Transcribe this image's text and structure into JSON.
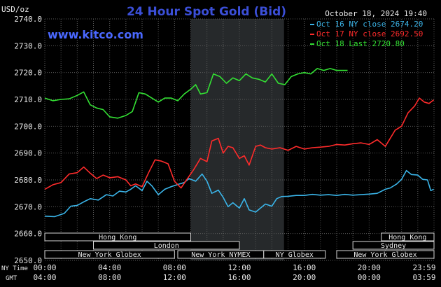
{
  "chart_data": {
    "type": "line",
    "title": "24 Hour Spot Gold (Bid)",
    "ylabel": "USD/oz",
    "date_label": "October 18, 2024 19:40",
    "brand": "www.kitco.com",
    "ylim": [
      2650.0,
      2740.0
    ],
    "yticks": [
      "2740.0",
      "2730.0",
      "2720.0",
      "2710.0",
      "2700.0",
      "2690.0",
      "2680.0",
      "2670.0",
      "2660.0",
      "2650.0"
    ],
    "x_unit": "hours",
    "xlim": [
      0,
      24
    ],
    "xticks": [
      0,
      4,
      8,
      12,
      16,
      20,
      23.98
    ],
    "xtick_labels_ny": [
      "00:00",
      "04:00",
      "08:00",
      "12:00",
      "16:00",
      "20:00",
      "23:59"
    ],
    "xtick_labels_gmt": [
      "04:00",
      "08:00",
      "12:00",
      "16:00",
      "20:00",
      "00:00",
      "03:59"
    ],
    "x_axis_labels": {
      "ny": "NY Time",
      "gmt": "GMT"
    },
    "shaded_region": [
      9,
      14.75
    ],
    "grid": true,
    "legend_position": "top-right",
    "series": [
      {
        "name": "Oct 16 NY close 2674.20",
        "color": "#3ab4e8",
        "x": [
          0,
          0.6,
          1.2,
          1.6,
          2.0,
          2.4,
          2.8,
          3.3,
          3.8,
          4.2,
          4.6,
          5.0,
          5.3,
          5.6,
          6.0,
          6.3,
          6.6,
          7.0,
          7.4,
          7.8,
          8.3,
          8.6,
          8.9,
          9.3,
          9.7,
          10.0,
          10.3,
          10.7,
          11.0,
          11.3,
          11.6,
          12.0,
          12.3,
          12.6,
          13.0,
          13.3,
          13.6,
          14.0,
          14.3,
          14.6,
          15.0,
          15.5,
          16.0,
          16.5,
          17.0,
          17.5,
          18.0,
          18.5,
          19.0,
          19.5,
          20.0,
          20.5,
          21.0,
          21.3,
          21.7,
          22.0,
          22.3,
          22.6,
          23.0,
          23.3,
          23.6,
          23.8,
          23.98
        ],
        "values": [
          2666.5,
          2666.3,
          2667.5,
          2670.2,
          2670.5,
          2671.8,
          2673.0,
          2672.5,
          2674.5,
          2674.0,
          2675.8,
          2675.5,
          2676.5,
          2677.8,
          2676.0,
          2679.5,
          2677.8,
          2674.5,
          2676.5,
          2677.5,
          2678.5,
          2679.0,
          2680.5,
          2679.5,
          2682.2,
          2679.5,
          2675.0,
          2676.2,
          2673.5,
          2670.0,
          2671.5,
          2669.5,
          2673.0,
          2668.8,
          2668.0,
          2669.5,
          2671.0,
          2670.2,
          2673.0,
          2673.8,
          2673.9,
          2674.2,
          2674.2,
          2674.6,
          2674.3,
          2674.5,
          2674.2,
          2674.6,
          2674.3,
          2674.5,
          2674.7,
          2675.0,
          2676.5,
          2677.0,
          2678.5,
          2680.2,
          2683.5,
          2682.0,
          2681.8,
          2680.2,
          2680.0,
          2676.0,
          2676.5
        ]
      },
      {
        "name": "Oct 17 NY close 2692.50",
        "color": "#ff2b2b",
        "x": [
          0,
          0.5,
          1.0,
          1.5,
          2.0,
          2.4,
          2.8,
          3.2,
          3.6,
          4.0,
          4.5,
          5.0,
          5.3,
          5.6,
          6.0,
          6.4,
          6.8,
          7.2,
          7.6,
          8.0,
          8.4,
          8.8,
          9.2,
          9.6,
          10.0,
          10.3,
          10.7,
          11.0,
          11.3,
          11.6,
          12.0,
          12.3,
          12.6,
          13.0,
          13.3,
          13.6,
          14.0,
          14.5,
          15.0,
          15.5,
          16.0,
          16.5,
          17.0,
          17.5,
          18.0,
          18.5,
          19.0,
          19.5,
          20.0,
          20.5,
          21.0,
          21.3,
          21.6,
          22.0,
          22.4,
          22.8,
          23.1,
          23.4,
          23.7,
          23.98
        ],
        "values": [
          2676.5,
          2678.2,
          2679.0,
          2682.2,
          2682.7,
          2684.8,
          2682.5,
          2680.5,
          2681.8,
          2680.8,
          2681.2,
          2680.0,
          2677.8,
          2678.5,
          2677.5,
          2682.7,
          2687.5,
          2687.0,
          2686.0,
          2679.5,
          2677.0,
          2680.5,
          2684.0,
          2688.0,
          2686.8,
          2694.5,
          2695.5,
          2690.0,
          2692.5,
          2692.0,
          2688.0,
          2689.0,
          2685.5,
          2692.5,
          2693.0,
          2692.0,
          2691.5,
          2692.0,
          2691.0,
          2692.5,
          2691.5,
          2692.0,
          2692.2,
          2692.5,
          2693.2,
          2693.0,
          2693.5,
          2693.8,
          2693.2,
          2695.0,
          2692.5,
          2695.5,
          2698.5,
          2700.0,
          2705.0,
          2707.5,
          2710.5,
          2709.0,
          2708.5,
          2709.8
        ]
      },
      {
        "name": "Oct 18 Last 2720.80",
        "color": "#33e033",
        "x": [
          0,
          0.5,
          1.0,
          1.5,
          2.0,
          2.4,
          2.8,
          3.2,
          3.6,
          4.0,
          4.5,
          5.0,
          5.4,
          5.8,
          6.2,
          6.6,
          7.0,
          7.4,
          7.8,
          8.2,
          8.6,
          9.0,
          9.3,
          9.6,
          10.0,
          10.4,
          10.8,
          11.2,
          11.6,
          12.0,
          12.4,
          12.8,
          13.2,
          13.6,
          14.0,
          14.4,
          14.8,
          15.2,
          15.6,
          16.0,
          16.4,
          16.8,
          17.2,
          17.6,
          18.0,
          18.4,
          18.67
        ],
        "values": [
          2710.5,
          2709.5,
          2710.0,
          2710.2,
          2711.5,
          2712.8,
          2708.0,
          2706.8,
          2706.2,
          2703.5,
          2703.0,
          2704.0,
          2705.5,
          2712.5,
          2712.0,
          2710.5,
          2709.0,
          2710.5,
          2710.5,
          2709.5,
          2712.0,
          2713.8,
          2715.5,
          2712.0,
          2712.5,
          2719.5,
          2718.5,
          2716.0,
          2718.0,
          2717.0,
          2719.5,
          2718.0,
          2717.5,
          2716.5,
          2719.5,
          2716.0,
          2715.5,
          2718.5,
          2719.5,
          2720.0,
          2719.5,
          2721.5,
          2720.8,
          2721.5,
          2720.8,
          2720.8,
          2720.8
        ]
      }
    ],
    "sessions": [
      {
        "label": "Hong Kong",
        "start": 0,
        "end": 9,
        "row": 0
      },
      {
        "label": "Hong Kong",
        "start": 20.75,
        "end": 24,
        "row": 0
      },
      {
        "label": "London",
        "start": 3,
        "end": 12,
        "row": 1
      },
      {
        "label": "Sydney",
        "start": 19,
        "end": 24,
        "row": 1
      },
      {
        "label": "New York Globex",
        "start": 0,
        "end": 8,
        "row": 2
      },
      {
        "label": "New York NYMEX",
        "start": 8.2,
        "end": 13.5,
        "row": 2
      },
      {
        "label": "NY Globex",
        "start": 13.5,
        "end": 17.3,
        "row": 2
      },
      {
        "label": "New York Globex",
        "start": 18,
        "end": 24,
        "row": 2
      }
    ]
  }
}
